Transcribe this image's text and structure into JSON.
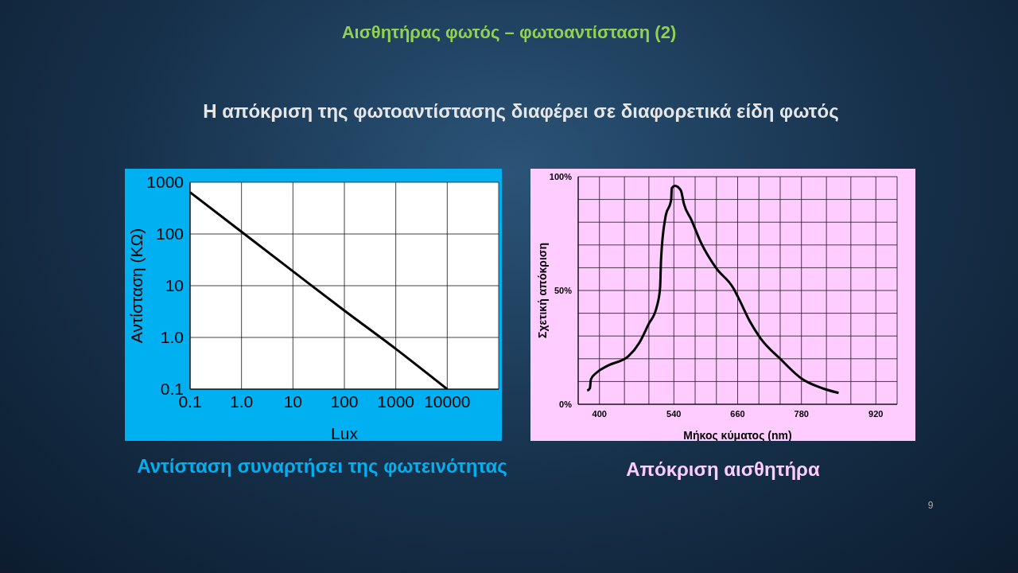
{
  "chart_data": [
    {
      "type": "line",
      "title": "Αισθητήρας φωτός – φωτοαντίσταση (2)",
      "subtitle": "Η απόκριση της φωτοαντίστασης διαφέρει σε διαφορετικά είδη φωτός",
      "xlabel": "Lux",
      "ylabel": "Αντίσταση (ΚΩ)",
      "log": "xy",
      "grid": true,
      "x": [
        0.1,
        1,
        10,
        100,
        1000,
        10000
      ],
      "series": [
        {
          "color": "#000000",
          "values": [
            640,
            110,
            19,
            3.3,
            0.6,
            0.1
          ]
        }
      ],
      "xlim": [
        0.1,
        100000
      ],
      "xticks": [
        0.1,
        {
          "value": 1,
          "label": "1.0"
        },
        10,
        100,
        1000,
        10000,
        {
          "value": 100000,
          "label": null
        }
      ],
      "ylim": [
        0.1,
        1000
      ],
      "yticks": [
        0.1,
        {
          "value": 1,
          "label": "1.0"
        },
        10,
        100,
        1000
      ],
      "annotations": [
        "Αντίσταση συναρτήσει της φωτεινότητας"
      ]
    },
    {
      "type": "line",
      "xlabel": "Μήκος κύματος (nm)",
      "ylabel": "Σχετική απόκριση",
      "grid": true,
      "x": [
        377,
        382,
        384,
        395,
        416,
        454,
        475,
        492,
        508,
        514,
        516,
        524,
        535,
        536,
        542,
        553,
        559,
        573,
        591,
        619,
        652,
        661,
        684,
        703,
        740,
        782,
        820,
        850
      ],
      "series": [
        {
          "color": "#000000",
          "values": [
            6,
            7,
            11,
            14,
            17,
            21,
            27,
            35,
            43,
            51,
            64,
            82,
            90,
            95,
            96,
            94,
            88,
            81,
            71,
            60,
            51,
            47,
            36,
            29,
            20,
            11,
            7,
            5
          ]
        }
      ],
      "xlim": [
        360,
        960
      ],
      "xticks": [
        {
          "value": 360,
          "label": null
        },
        400,
        {
          "value": 447,
          "label": null
        },
        {
          "value": 493,
          "label": null
        },
        540,
        {
          "value": 580,
          "label": null
        },
        {
          "value": 620,
          "label": null
        },
        660,
        {
          "value": 700,
          "label": null
        },
        {
          "value": 740,
          "label": null
        },
        780,
        {
          "value": 827,
          "label": null
        },
        {
          "value": 873,
          "label": null
        },
        920,
        {
          "value": 960,
          "label": null
        }
      ],
      "ylim": [
        0,
        100
      ],
      "yticks": [
        {
          "value": 0,
          "label": "0%"
        },
        {
          "value": 10,
          "label": null
        },
        {
          "value": 20,
          "label": null
        },
        {
          "value": 30,
          "label": null
        },
        {
          "value": 40,
          "label": null
        },
        {
          "value": 50,
          "label": "50%"
        },
        {
          "value": 60,
          "label": null
        },
        {
          "value": 70,
          "label": null
        },
        {
          "value": 80,
          "label": null
        },
        {
          "value": 90,
          "label": null
        },
        {
          "value": 100,
          "label": "100%"
        }
      ],
      "annotations": [
        "Απόκριση αισθητήρα",
        "9"
      ]
    }
  ]
}
